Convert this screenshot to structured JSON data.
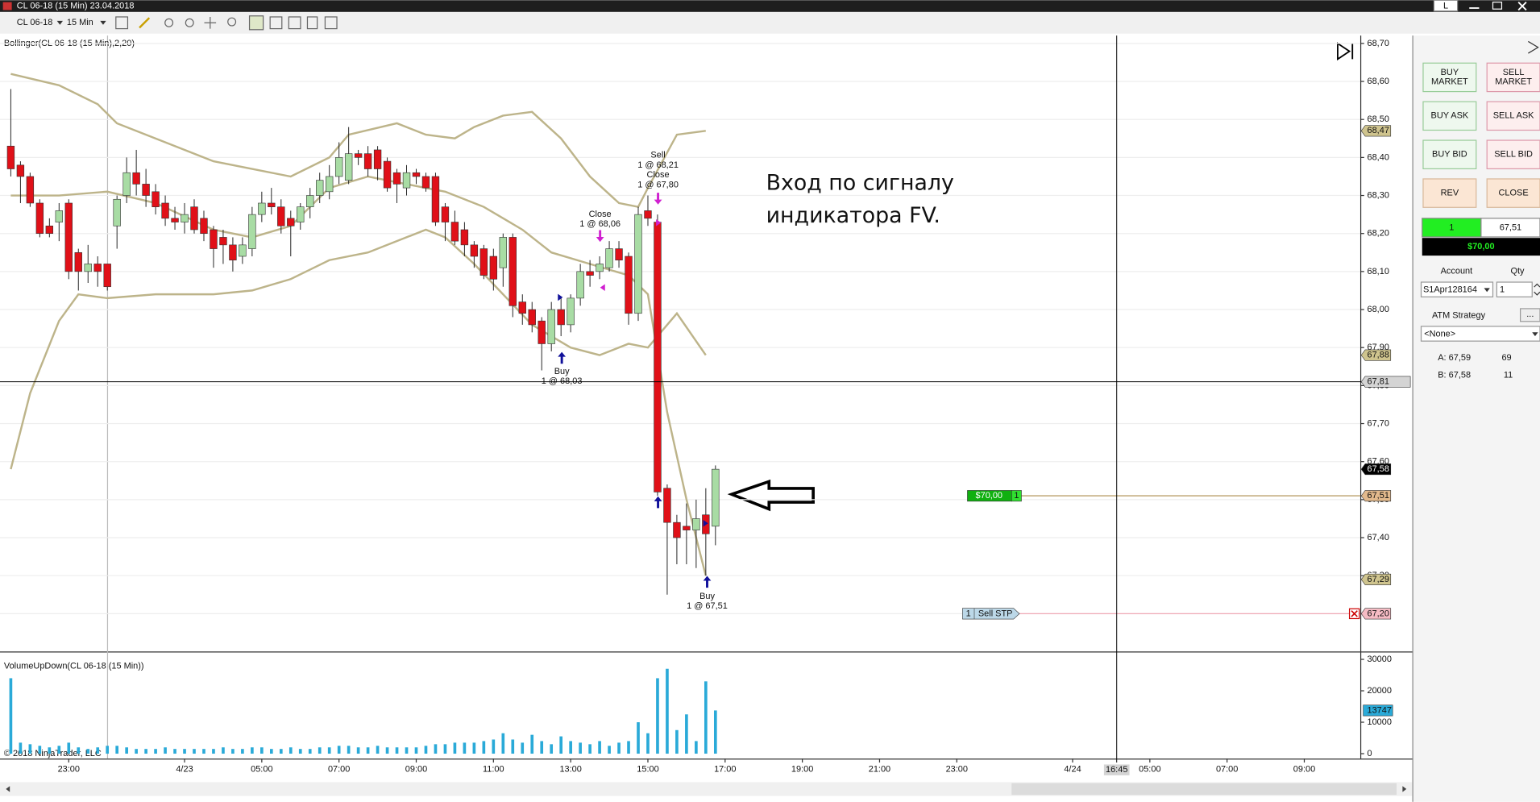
{
  "window": {
    "title": "CL 06-18 (15 Min)  23.04.2018",
    "layout_button": "L"
  },
  "toolbar": {
    "instrument": "CL 06-18",
    "interval": "15 Min"
  },
  "chart_data": {
    "type": "candlestick",
    "indicator_label": "Bollinger(CL 06-18 (15 Min),2,20)",
    "x": [
      0,
      1,
      2,
      3,
      4,
      5,
      6,
      7,
      8,
      9,
      10,
      11,
      12,
      13,
      14,
      15,
      16,
      17,
      18,
      19,
      20,
      21,
      22,
      23,
      24,
      25,
      26,
      27,
      28,
      29,
      30,
      31,
      32,
      33,
      34,
      35,
      36,
      37,
      38,
      39,
      40,
      41,
      42,
      43,
      44,
      45,
      46,
      47,
      48,
      49,
      50,
      51,
      52,
      53,
      54,
      55,
      56,
      57,
      58,
      59,
      60,
      61,
      62,
      63,
      64,
      65,
      66,
      67,
      68,
      69,
      70,
      71,
      72,
      73
    ],
    "open": [
      68.43,
      68.38,
      68.35,
      68.28,
      68.22,
      68.23,
      68.28,
      68.15,
      68.1,
      68.12,
      68.12,
      68.22,
      68.3,
      68.36,
      68.33,
      68.31,
      68.28,
      68.24,
      68.23,
      68.27,
      68.24,
      68.21,
      68.19,
      68.17,
      68.14,
      68.16,
      68.25,
      68.28,
      68.27,
      68.24,
      68.23,
      68.27,
      68.3,
      68.31,
      68.35,
      68.34,
      68.41,
      68.41,
      68.42,
      68.39,
      68.36,
      68.32,
      68.36,
      68.35,
      68.35,
      68.27,
      68.23,
      68.21,
      68.17,
      68.16,
      68.14,
      68.11,
      68.19,
      68.02,
      68.0,
      67.97,
      67.91,
      68.0,
      67.96,
      68.03,
      68.1,
      68.1,
      68.11,
      68.16,
      68.14,
      67.99,
      68.26,
      68.23,
      67.53,
      67.44,
      67.43,
      67.42,
      67.46,
      67.43
    ],
    "high": [
      68.58,
      68.39,
      68.36,
      68.29,
      68.24,
      68.28,
      68.29,
      68.16,
      68.17,
      68.14,
      68.12,
      68.3,
      68.4,
      68.42,
      68.37,
      68.33,
      68.3,
      68.27,
      68.28,
      68.29,
      68.26,
      68.22,
      68.21,
      68.19,
      68.19,
      68.27,
      68.31,
      68.32,
      68.29,
      68.26,
      68.28,
      68.32,
      68.36,
      68.38,
      68.44,
      68.48,
      68.42,
      68.43,
      68.43,
      68.4,
      68.37,
      68.38,
      68.37,
      68.36,
      68.36,
      68.28,
      68.26,
      68.23,
      68.18,
      68.17,
      68.16,
      68.2,
      68.2,
      68.04,
      68.02,
      67.98,
      68.02,
      68.03,
      68.04,
      68.12,
      68.13,
      68.14,
      68.18,
      68.18,
      68.15,
      68.27,
      68.3,
      68.25,
      67.54,
      67.46,
      67.49,
      67.5,
      67.53,
      67.59
    ],
    "low": [
      68.35,
      68.28,
      68.27,
      68.19,
      68.19,
      68.18,
      68.08,
      68.05,
      68.07,
      68.06,
      68.05,
      68.16,
      68.28,
      68.3,
      68.27,
      68.25,
      68.22,
      68.21,
      68.2,
      68.2,
      68.18,
      68.11,
      68.12,
      68.1,
      68.12,
      68.14,
      68.23,
      68.25,
      68.2,
      68.14,
      68.21,
      68.24,
      68.28,
      68.29,
      68.33,
      68.33,
      68.38,
      68.35,
      68.34,
      68.31,
      68.28,
      68.3,
      68.33,
      68.31,
      68.22,
      68.18,
      68.17,
      68.14,
      68.11,
      68.08,
      68.05,
      68.06,
      67.98,
      67.96,
      67.94,
      67.84,
      67.89,
      67.93,
      67.94,
      68.01,
      68.06,
      68.08,
      68.1,
      68.11,
      67.96,
      67.97,
      68.22,
      67.51,
      67.25,
      67.33,
      67.33,
      67.32,
      67.3,
      67.38
    ],
    "close": [
      68.37,
      68.35,
      68.28,
      68.2,
      68.2,
      68.26,
      68.1,
      68.1,
      68.12,
      68.1,
      68.06,
      68.29,
      68.36,
      68.33,
      68.3,
      68.27,
      68.24,
      68.23,
      68.25,
      68.21,
      68.2,
      68.16,
      68.17,
      68.13,
      68.17,
      68.25,
      68.28,
      68.27,
      68.22,
      68.22,
      68.27,
      68.3,
      68.34,
      68.35,
      68.4,
      68.41,
      68.4,
      68.37,
      68.37,
      68.32,
      68.33,
      68.36,
      68.35,
      68.32,
      68.23,
      68.23,
      68.18,
      68.17,
      68.14,
      68.09,
      68.08,
      68.19,
      68.01,
      67.99,
      67.96,
      67.91,
      68.0,
      67.96,
      68.03,
      68.1,
      68.09,
      68.12,
      68.16,
      68.13,
      67.99,
      68.25,
      68.24,
      67.52,
      67.44,
      67.4,
      67.42,
      67.45,
      67.41,
      67.58
    ],
    "up_color": "#a8dca4",
    "down_color": "#e01018",
    "bands": [
      {
        "color": "#bdb48a",
        "x": [
          0,
          5,
          9,
          11,
          17,
          21,
          25,
          29,
          33,
          35,
          40,
          43,
          46,
          48,
          51,
          54,
          57,
          60,
          63,
          65,
          66,
          69,
          72
        ],
        "values": [
          68.62,
          68.59,
          68.54,
          68.49,
          68.43,
          68.39,
          68.37,
          68.35,
          68.4,
          68.46,
          68.49,
          68.46,
          68.45,
          68.48,
          68.51,
          68.52,
          68.45,
          68.35,
          68.28,
          68.27,
          68.32,
          68.46,
          68.47
        ]
      },
      {
        "color": "#bdb48a",
        "x": [
          0,
          5,
          10,
          15,
          21,
          25,
          29,
          33,
          37,
          43,
          45,
          49,
          53,
          56,
          60,
          64,
          66,
          68,
          70,
          72
        ],
        "values": [
          68.3,
          68.3,
          68.31,
          68.28,
          68.21,
          68.19,
          68.22,
          68.32,
          68.35,
          68.32,
          68.31,
          68.27,
          68.21,
          68.15,
          68.12,
          68.09,
          68.04,
          67.73,
          67.5,
          67.3
        ]
      },
      {
        "color": "#bdb48a",
        "x": [
          0,
          2,
          5,
          7,
          10,
          15,
          21,
          25,
          29,
          33,
          37,
          43,
          45,
          48,
          51,
          54,
          58,
          61,
          64,
          66,
          69,
          72
        ],
        "values": [
          67.58,
          67.78,
          67.97,
          68.04,
          68.03,
          68.04,
          68.04,
          68.05,
          68.08,
          68.13,
          68.15,
          68.21,
          68.19,
          68.12,
          68.04,
          67.96,
          67.9,
          67.88,
          67.91,
          67.9,
          67.99,
          67.88
        ]
      }
    ],
    "xlim": [
      -1.12,
      139.8
    ],
    "xticks": [
      {
        "value": 6,
        "label": "23:00"
      },
      {
        "value": 18,
        "label": "4/23"
      },
      {
        "value": 26,
        "label": "05:00"
      },
      {
        "value": 34,
        "label": "07:00"
      },
      {
        "value": 42,
        "label": "09:00"
      },
      {
        "value": 50,
        "label": "11:00"
      },
      {
        "value": 58,
        "label": "13:00"
      },
      {
        "value": 66,
        "label": "15:00"
      },
      {
        "value": 74,
        "label": "17:00"
      },
      {
        "value": 82,
        "label": "19:00"
      },
      {
        "value": 90,
        "label": "21:00"
      },
      {
        "value": 98,
        "label": "23:00"
      },
      {
        "value": 110,
        "label": "4/24"
      },
      {
        "value": 118,
        "label": "05:00"
      },
      {
        "value": 126,
        "label": "07:00"
      },
      {
        "value": 134,
        "label": "09:00"
      }
    ],
    "ylim": [
      67.1,
      68.72
    ],
    "yticks": [
      {
        "value": 68.7,
        "label": "68,70"
      },
      {
        "value": 68.6,
        "label": "68,60"
      },
      {
        "value": 68.5,
        "label": "68,50"
      },
      {
        "value": 68.4,
        "label": "68,40"
      },
      {
        "value": 68.3,
        "label": "68,30"
      },
      {
        "value": 68.2,
        "label": "68,20"
      },
      {
        "value": 68.1,
        "label": "68,10"
      },
      {
        "value": 68.0,
        "label": "68,00"
      },
      {
        "value": 67.9,
        "label": "67,90"
      },
      {
        "value": 67.8,
        "label": "67,80"
      },
      {
        "value": 67.7,
        "label": "67,70"
      },
      {
        "value": 67.6,
        "label": "67,60"
      },
      {
        "value": 67.5,
        "label": "67,50"
      },
      {
        "value": 67.4,
        "label": "67,40"
      },
      {
        "value": 67.3,
        "label": "67,30"
      },
      {
        "value": 67.2,
        "label": "67,20"
      }
    ],
    "grid": true,
    "price_markers": [
      {
        "value": 68.47,
        "label": "68,47",
        "color": "#cfc48e"
      },
      {
        "value": 67.88,
        "label": "67,88",
        "color": "#cfc48e"
      },
      {
        "value": 67.81,
        "label": "67,81",
        "color": "#d4d4d4"
      },
      {
        "value": 67.58,
        "label": "67,58",
        "color": "#000000"
      },
      {
        "value": 67.51,
        "label": "67,51",
        "color": "#e2b98c"
      },
      {
        "value": 67.29,
        "label": "67,29",
        "color": "#cfc48e"
      },
      {
        "value": 67.2,
        "label": "67,20",
        "color": "#f6bcc4"
      }
    ],
    "crosshair_time": "16:45",
    "signals": [
      {
        "lines": [
          "Buy",
          "1 @ 68,03"
        ]
      },
      {
        "lines": [
          "Close",
          "1 @ 68,06"
        ]
      },
      {
        "lines": [
          "Sell",
          "1 @ 68,21",
          "Close",
          "1 @ 67,80"
        ]
      },
      {
        "lines": [
          "Buy",
          "1 @ 67,51"
        ]
      }
    ],
    "annotation": [
      "Вход по сигналу",
      "индикатора FV."
    ],
    "orders": [
      {
        "label": "$70,00",
        "qty": "1"
      },
      {
        "qty": "1",
        "label": "Sell STP"
      }
    ],
    "volume": {
      "indicator_label": "VolumeUpDown(CL 06-18 (15 Min))",
      "color": "#2aaad8",
      "values": [
        24000,
        3500,
        3000,
        2500,
        2000,
        2500,
        3500,
        2000,
        1500,
        2000,
        2500,
        2500,
        2000,
        1500,
        1500,
        1500,
        2000,
        1500,
        1500,
        1500,
        1500,
        1500,
        2000,
        1500,
        1500,
        2000,
        2000,
        1500,
        1500,
        2000,
        1500,
        1500,
        2000,
        2000,
        2500,
        2500,
        2000,
        2000,
        2500,
        2000,
        2000,
        2000,
        2000,
        2500,
        3000,
        3000,
        3500,
        3500,
        3500,
        4000,
        4500,
        6500,
        4500,
        3500,
        6000,
        4000,
        3000,
        5500,
        4000,
        3500,
        3000,
        4000,
        2500,
        3500,
        4000,
        10000,
        6500,
        24000,
        27000,
        7500,
        12500,
        4000,
        23000,
        13747
      ],
      "ylim": [
        0,
        30000
      ],
      "yticks": [
        0,
        10000,
        20000,
        30000
      ]
    },
    "copyright": "© 2018 NinjaTrader, LLC"
  },
  "order_panel": {
    "buttons": [
      [
        "BUY",
        "MARKET"
      ],
      [
        "SELL",
        "MARKET"
      ],
      [
        "BUY ASK"
      ],
      [
        "SELL ASK"
      ],
      [
        "BUY BID"
      ],
      [
        "SELL BID"
      ],
      [
        "REV"
      ],
      [
        "CLOSE"
      ]
    ],
    "position": {
      "qty": "1",
      "avg_price": "67,51",
      "pnl": "$70,00"
    },
    "account_label": "Account",
    "qty_label": "Qty",
    "account": "S1Apr128164",
    "qty": 1,
    "atm_label": "ATM Strategy",
    "atm_button": "...",
    "atm": "<None>",
    "ask": "A: 67,59",
    "ask_size": 69,
    "bid": "B: 67,58",
    "bid_size": 11
  }
}
